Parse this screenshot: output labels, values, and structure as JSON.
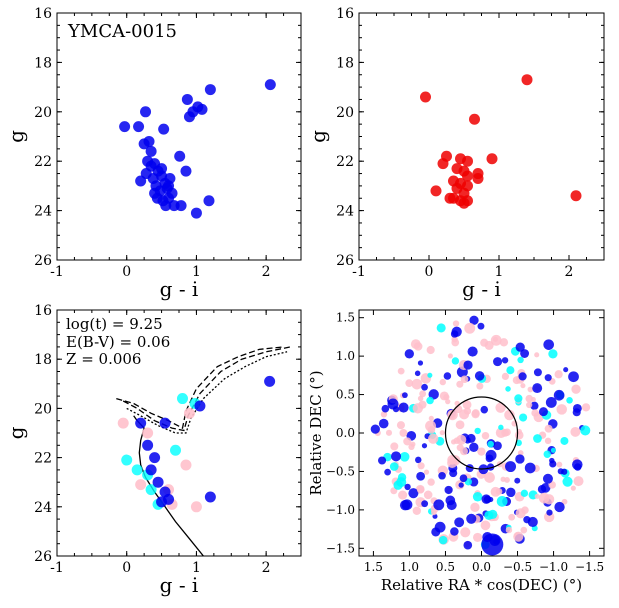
{
  "chart_data": [
    {
      "type": "scatter",
      "panel": "top-left",
      "annotation": "YMCA-0015",
      "xlabel": "g - i",
      "ylabel": "g",
      "xlim": [
        -1,
        2.5
      ],
      "ylim": [
        26,
        16
      ],
      "xticks": [
        "-1",
        "0",
        "1",
        "2"
      ],
      "yticks": [
        "16",
        "18",
        "20",
        "22",
        "24",
        "26"
      ],
      "marker_color": "#0000ee",
      "points": [
        [
          -0.03,
          20.6
        ],
        [
          0.17,
          20.6
        ],
        [
          0.27,
          20.0
        ],
        [
          0.53,
          20.7
        ],
        [
          0.76,
          21.8
        ],
        [
          0.87,
          19.5
        ],
        [
          0.95,
          20.0
        ],
        [
          1.02,
          19.8
        ],
        [
          1.08,
          19.9
        ],
        [
          1.2,
          19.1
        ],
        [
          2.06,
          18.9
        ],
        [
          0.25,
          21.3
        ],
        [
          0.32,
          21.2
        ],
        [
          0.35,
          21.6
        ],
        [
          0.3,
          22.0
        ],
        [
          0.4,
          22.1
        ],
        [
          0.45,
          22.4
        ],
        [
          0.28,
          22.5
        ],
        [
          0.38,
          22.7
        ],
        [
          0.2,
          22.8
        ],
        [
          0.5,
          22.6
        ],
        [
          0.55,
          22.9
        ],
        [
          0.62,
          22.7
        ],
        [
          0.42,
          23.0
        ],
        [
          0.48,
          23.2
        ],
        [
          0.58,
          23.1
        ],
        [
          0.65,
          23.3
        ],
        [
          0.44,
          23.5
        ],
        [
          0.52,
          23.6
        ],
        [
          0.6,
          23.5
        ],
        [
          0.68,
          23.8
        ],
        [
          0.56,
          23.8
        ],
        [
          0.78,
          23.8
        ],
        [
          1.0,
          24.1
        ],
        [
          1.18,
          23.6
        ],
        [
          0.35,
          22.2
        ],
        [
          0.5,
          22.3
        ],
        [
          0.6,
          23.0
        ],
        [
          0.85,
          22.4
        ],
        [
          0.9,
          20.2
        ],
        [
          0.4,
          23.3
        ]
      ]
    },
    {
      "type": "scatter",
      "panel": "top-right",
      "xlabel": "g - i",
      "ylabel": "g",
      "xlim": [
        -1,
        2.5
      ],
      "ylim": [
        26,
        16
      ],
      "xticks": [
        "-1",
        "0",
        "1",
        "2"
      ],
      "yticks": [
        "16",
        "18",
        "20",
        "22",
        "24",
        "26"
      ],
      "marker_color": "#ee0000",
      "points": [
        [
          -0.05,
          19.4
        ],
        [
          1.4,
          18.7
        ],
        [
          0.65,
          20.3
        ],
        [
          2.1,
          23.4
        ],
        [
          0.25,
          21.8
        ],
        [
          0.45,
          21.9
        ],
        [
          0.55,
          22.0
        ],
        [
          0.9,
          21.9
        ],
        [
          0.2,
          22.1
        ],
        [
          0.4,
          22.3
        ],
        [
          0.5,
          22.4
        ],
        [
          0.55,
          22.6
        ],
        [
          0.7,
          22.5
        ],
        [
          0.7,
          22.7
        ],
        [
          0.35,
          22.8
        ],
        [
          0.45,
          22.9
        ],
        [
          0.55,
          23.0
        ],
        [
          0.1,
          23.2
        ],
        [
          0.4,
          23.1
        ],
        [
          0.5,
          23.3
        ],
        [
          0.35,
          23.5
        ],
        [
          0.45,
          23.6
        ],
        [
          0.55,
          23.6
        ],
        [
          0.5,
          23.7
        ],
        [
          0.3,
          23.5
        ]
      ]
    },
    {
      "type": "scatter",
      "panel": "bottom-left",
      "xlabel": "g - i",
      "ylabel": "g",
      "xlim": [
        -1,
        2.5
      ],
      "ylim": [
        26,
        16
      ],
      "xticks": [
        "-1",
        "0",
        "1",
        "2"
      ],
      "yticks": [
        "16",
        "18",
        "20",
        "22",
        "24",
        "26"
      ],
      "annotations": [
        "log(t) = 9.25",
        "E(B-V) = 0.06",
        "Z = 0.006"
      ],
      "isochrones": [
        {
          "style": "solid",
          "points": [
            [
              1.1,
              26.0
            ],
            [
              0.9,
              25.3
            ],
            [
              0.7,
              24.6
            ],
            [
              0.55,
              24.0
            ],
            [
              0.4,
              23.4
            ],
            [
              0.27,
              22.8
            ],
            [
              0.2,
              22.3
            ],
            [
              0.18,
              21.8
            ],
            [
              0.2,
              21.3
            ],
            [
              0.25,
              20.8
            ],
            [
              0.15,
              20.5
            ],
            [
              0.1,
              20.3
            ]
          ]
        },
        {
          "style": "dashed",
          "points": [
            [
              -0.15,
              19.6
            ],
            [
              0.1,
              19.8
            ],
            [
              0.35,
              20.2
            ],
            [
              0.6,
              20.5
            ],
            [
              0.8,
              20.8
            ],
            [
              0.85,
              20.1
            ],
            [
              1.0,
              19.2
            ],
            [
              1.3,
              18.3
            ],
            [
              1.6,
              17.9
            ],
            [
              1.9,
              17.6
            ],
            [
              2.25,
              17.5
            ]
          ]
        },
        {
          "style": "dashed",
          "points": [
            [
              -0.05,
              19.7
            ],
            [
              0.15,
              20.0
            ],
            [
              0.4,
              20.5
            ],
            [
              0.65,
              20.8
            ],
            [
              0.82,
              20.9
            ],
            [
              0.88,
              20.3
            ],
            [
              1.05,
              19.4
            ],
            [
              1.35,
              18.5
            ],
            [
              1.65,
              18.0
            ],
            [
              2.0,
              17.7
            ],
            [
              2.35,
              17.5
            ]
          ]
        },
        {
          "style": "dotted",
          "points": [
            [
              0.0,
              20.0
            ],
            [
              0.2,
              20.3
            ],
            [
              0.45,
              20.7
            ],
            [
              0.7,
              21.0
            ],
            [
              0.85,
              21.0
            ],
            [
              0.92,
              20.4
            ],
            [
              1.1,
              19.6
            ],
            [
              1.4,
              18.8
            ],
            [
              1.7,
              18.3
            ],
            [
              2.0,
              17.9
            ],
            [
              2.3,
              17.7
            ]
          ]
        }
      ],
      "cyan_points": [
        [
          0.0,
          22.1
        ],
        [
          0.15,
          22.5
        ],
        [
          0.3,
          22.7
        ],
        [
          0.35,
          23.3
        ],
        [
          0.45,
          23.9
        ],
        [
          0.8,
          19.6
        ],
        [
          0.98,
          19.8
        ],
        [
          0.7,
          21.7
        ]
      ],
      "pink_points": [
        [
          -0.05,
          20.6
        ],
        [
          0.3,
          21.0
        ],
        [
          0.9,
          20.2
        ],
        [
          0.85,
          22.3
        ],
        [
          0.6,
          23.3
        ],
        [
          0.65,
          23.9
        ],
        [
          1.0,
          24.0
        ],
        [
          0.2,
          23.1
        ]
      ],
      "blue_points": [
        [
          0.2,
          20.6
        ],
        [
          0.55,
          20.6
        ],
        [
          1.05,
          19.9
        ],
        [
          2.05,
          18.9
        ],
        [
          0.3,
          21.5
        ],
        [
          0.4,
          22.0
        ],
        [
          0.35,
          22.5
        ],
        [
          0.45,
          23.0
        ],
        [
          0.55,
          23.4
        ],
        [
          0.6,
          23.7
        ],
        [
          1.2,
          23.6
        ],
        [
          0.5,
          23.8
        ]
      ]
    },
    {
      "type": "scatter",
      "panel": "bottom-right",
      "xlabel": "Relative RA * cos(DEC) (°)",
      "ylabel": "Relative DEC (°)",
      "xlim": [
        1.7,
        -1.7
      ],
      "ylim": [
        -1.6,
        1.6
      ],
      "xticks": [
        "1.5",
        "1.0",
        "0.5",
        "0.0",
        "−0.5",
        "−1.0",
        "−1.5"
      ],
      "yticks": [
        "1.5",
        "1.0",
        "0.5",
        "0.0",
        "−0.5",
        "−1.0",
        "−1.5"
      ],
      "circle_radius_deg": 0.5,
      "large_marker": [
        -0.15,
        -1.45
      ]
    }
  ]
}
